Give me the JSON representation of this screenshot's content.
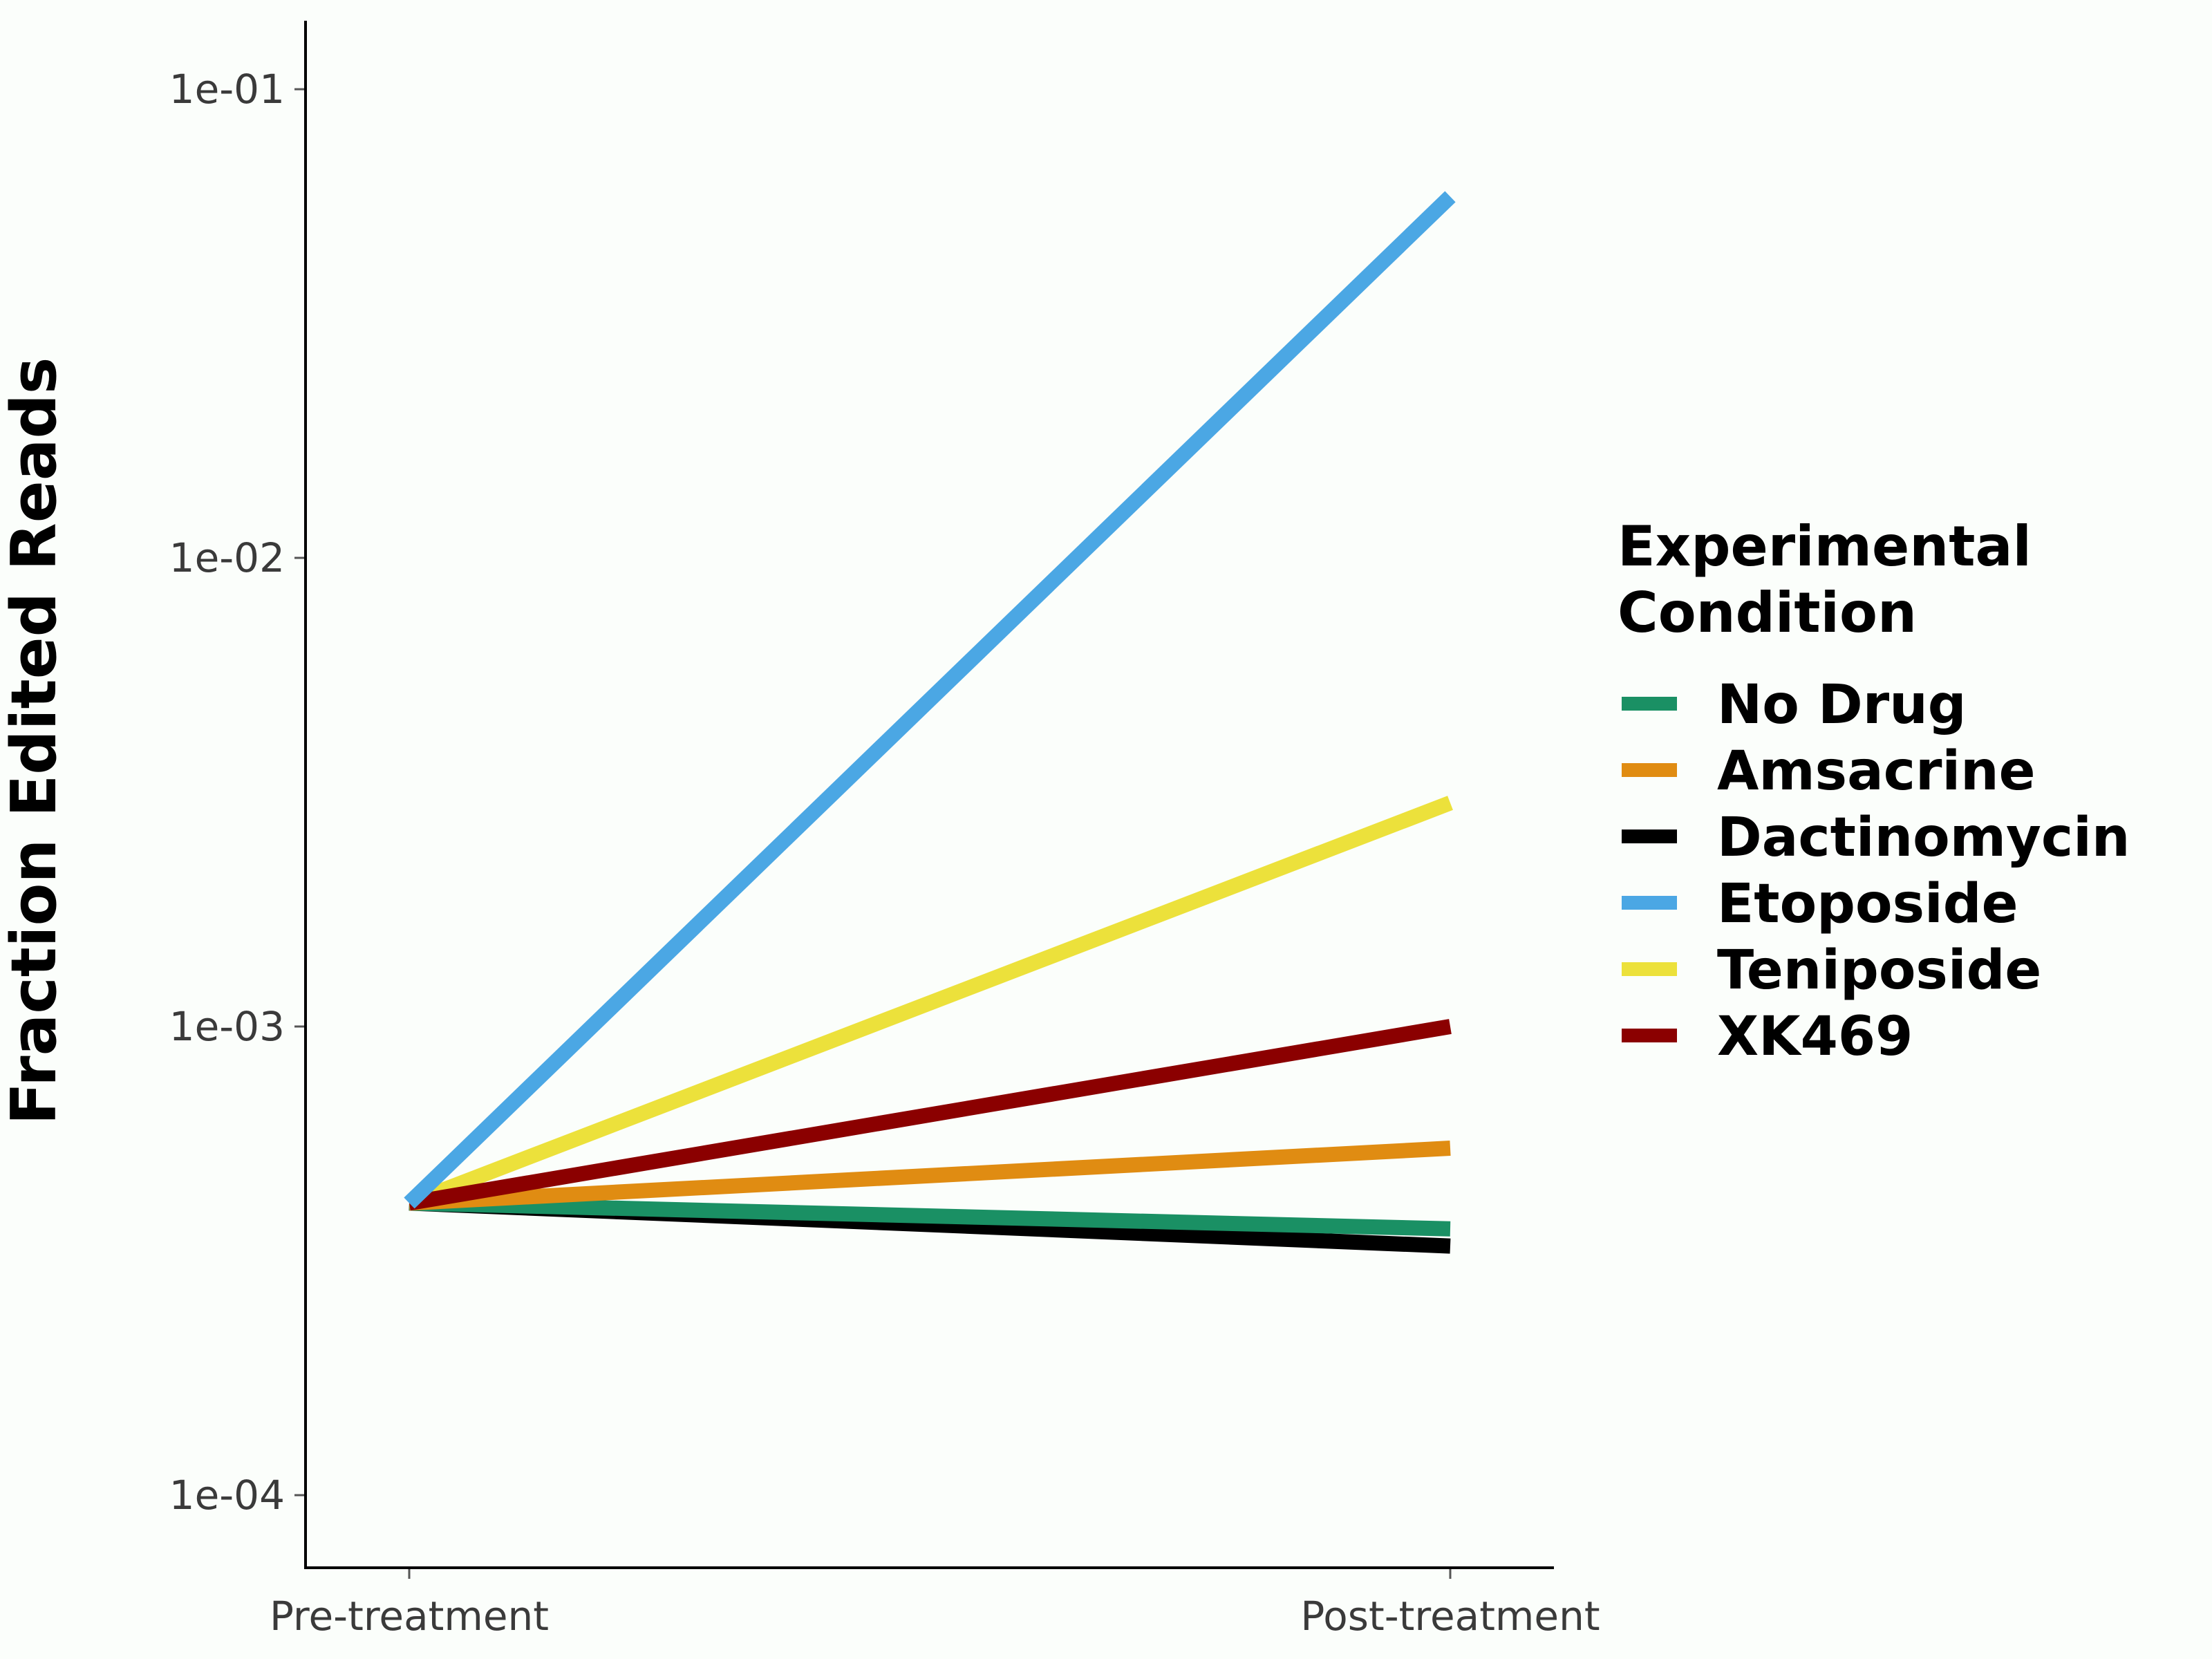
{
  "chart_data": {
    "type": "line",
    "title": "",
    "xlabel": "",
    "ylabel": "Fraction Edited Reads",
    "y_scale": "log10",
    "ylim": [
      7e-05,
      0.14
    ],
    "categories": [
      "Pre-treatment",
      "Post-treatment"
    ],
    "y_ticks": [
      {
        "value": 0.0001,
        "label": "1e-04"
      },
      {
        "value": 0.001,
        "label": "1e-03"
      },
      {
        "value": 0.01,
        "label": "1e-02"
      },
      {
        "value": 0.1,
        "label": "1e-01"
      }
    ],
    "grid": false,
    "legend": {
      "title_lines": [
        "Experimental",
        "Condition"
      ],
      "position": "right"
    },
    "series": [
      {
        "name": "No Drug",
        "color": "#1a9064",
        "values": [
          0.00042,
          0.00037
        ]
      },
      {
        "name": "Amsacrine",
        "color": "#e08c12",
        "values": [
          0.00042,
          0.00055
        ]
      },
      {
        "name": "Dactinomycin",
        "color": "#000000",
        "values": [
          0.00042,
          0.00034
        ]
      },
      {
        "name": "Etoposide",
        "color": "#4ba7e4",
        "values": [
          0.00042,
          0.059
        ]
      },
      {
        "name": "Teniposide",
        "color": "#ece13b",
        "values": [
          0.00042,
          0.003
        ]
      },
      {
        "name": "XK469",
        "color": "#8b0000",
        "values": [
          0.00042,
          0.001
        ]
      }
    ],
    "draw_order": [
      "Dactinomycin",
      "No Drug",
      "Amsacrine",
      "Teniposide",
      "XK469",
      "Etoposide"
    ]
  }
}
